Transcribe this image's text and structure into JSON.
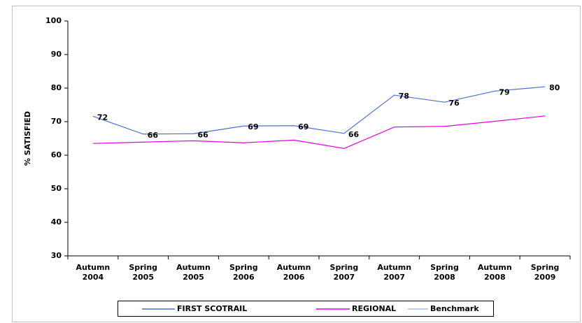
{
  "chart_data": {
    "type": "line",
    "y_label": "% SATISFIED",
    "categories": [
      "Autumn 2004",
      "Spring 2005",
      "Autumn 2005",
      "Spring 2006",
      "Autumn 2006",
      "Spring 2007",
      "Autumn 2007",
      "Spring 2008",
      "Autumn 2008",
      "Spring 2009"
    ],
    "series": [
      {
        "name": "FIRST SCOTRAIL",
        "color": "#4f6fd0",
        "values": [
          71.6,
          66.3,
          66.4,
          68.7,
          68.8,
          66.5,
          77.9,
          75.8,
          79.1,
          80.4
        ],
        "value_labels": [
          "72",
          "66",
          "66",
          "69",
          "69",
          "66",
          "78",
          "76",
          "79",
          "80"
        ]
      },
      {
        "name": "REGIONAL",
        "color": "#e000e0",
        "values": [
          63.5,
          63.9,
          64.3,
          63.7,
          64.5,
          62.0,
          68.4,
          68.6,
          70.1,
          71.7
        ]
      },
      {
        "name": "Benchmark",
        "color": "#9dc3e6",
        "values": [
          null,
          null,
          null,
          null,
          null,
          null,
          null,
          null,
          null,
          null
        ]
      }
    ],
    "ylim": [
      30,
      100
    ],
    "yticks": [
      30,
      40,
      50,
      60,
      70,
      80,
      90,
      100
    ],
    "grid": false,
    "legend": "bottom"
  }
}
